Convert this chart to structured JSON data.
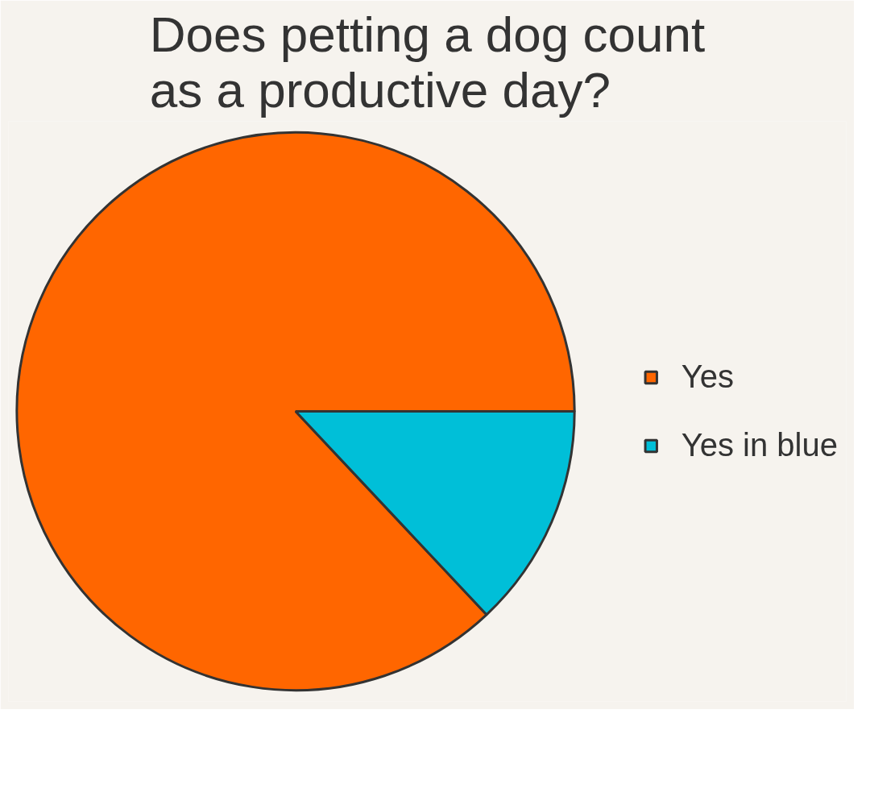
{
  "chart_data": {
    "type": "pie",
    "title": "Does petting a dog count\nas a productive day?",
    "categories": [
      "Yes",
      "Yes in blue"
    ],
    "values": [
      87,
      13
    ],
    "colors": [
      "#ff6600",
      "#00bfd8"
    ],
    "legend": "right"
  }
}
